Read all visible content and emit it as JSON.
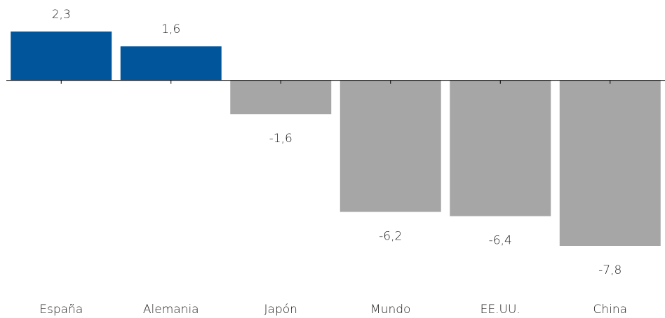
{
  "chart_data": {
    "type": "bar",
    "categories": [
      "España",
      "Alemania",
      "Japón",
      "Mundo",
      "EE.UU.",
      "China"
    ],
    "values": [
      2.3,
      1.6,
      -1.6,
      -6.2,
      -6.4,
      -7.8
    ],
    "value_labels": [
      "2,3",
      "1,6",
      "-1,6",
      "-6,2",
      "-6,4",
      "-7,8"
    ],
    "colors": [
      "#00559b",
      "#00559b",
      "#a6a6a6",
      "#a6a6a6",
      "#a6a6a6",
      "#a6a6a6"
    ]
  }
}
